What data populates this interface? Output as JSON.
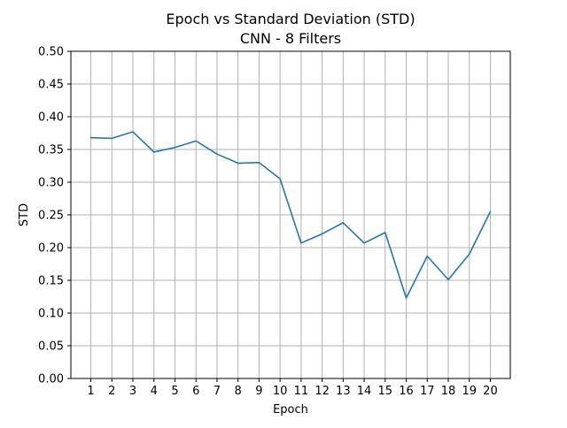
{
  "chart_data": {
    "type": "line",
    "title": "Epoch vs Standard Deviation (STD)",
    "subtitle": "CNN - 8 Filters",
    "xlabel": "Epoch",
    "ylabel": "STD",
    "x": [
      1,
      2,
      3,
      4,
      5,
      6,
      7,
      8,
      9,
      10,
      11,
      12,
      13,
      14,
      15,
      16,
      17,
      18,
      19,
      20
    ],
    "xlim": [
      0.05,
      20.95
    ],
    "ylim": [
      0.0,
      0.5
    ],
    "yticks": [
      "0.00",
      "0.05",
      "0.10",
      "0.15",
      "0.20",
      "0.25",
      "0.30",
      "0.35",
      "0.40",
      "0.45",
      "0.50"
    ],
    "grid": true,
    "series": [
      {
        "color": "#1f77b4",
        "values": [
          0.368,
          0.367,
          0.377,
          0.346,
          0.353,
          0.363,
          0.343,
          0.329,
          0.33,
          0.305,
          0.207,
          0.221,
          0.238,
          0.207,
          0.223,
          0.123,
          0.187,
          0.151,
          0.19,
          0.255
        ]
      }
    ]
  }
}
